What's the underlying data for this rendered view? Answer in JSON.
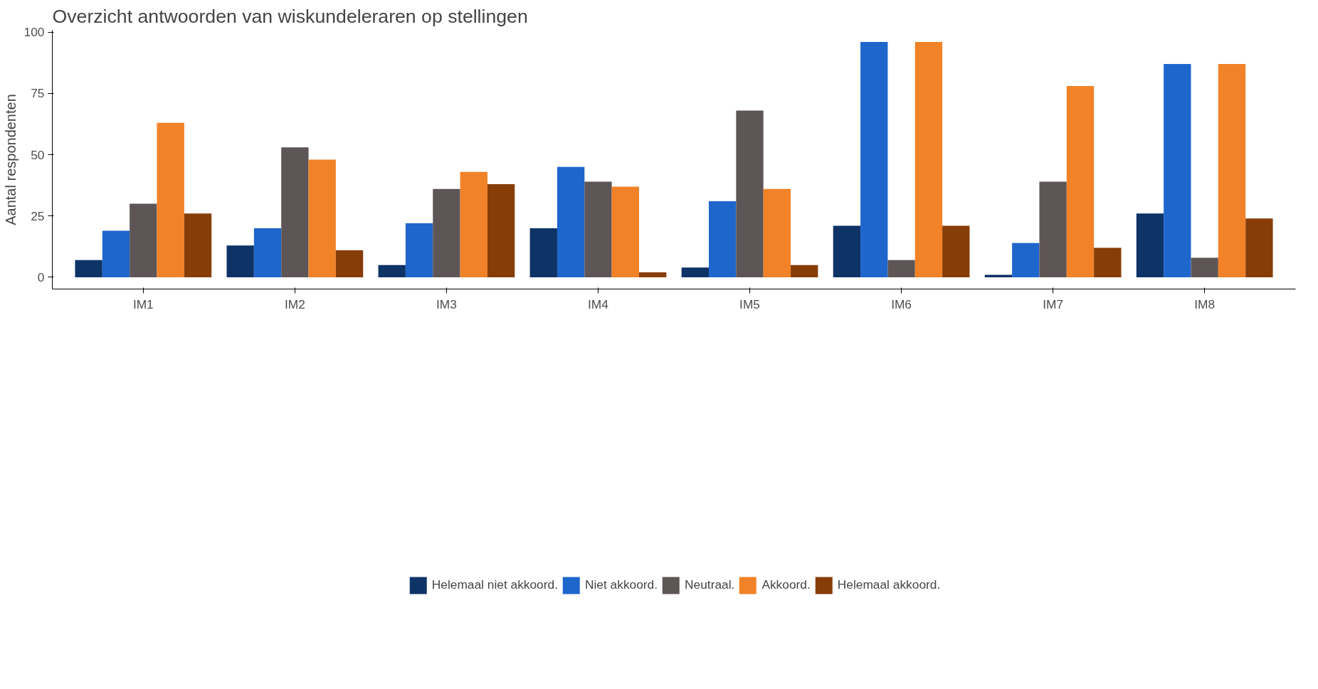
{
  "chart_data": {
    "type": "bar",
    "title": "Overzicht antwoorden van wiskundeleraren op stellingen",
    "ylabel": "Aantal respondenten",
    "categories": [
      "IM1",
      "IM2",
      "IM3",
      "IM4",
      "IM5",
      "IM6",
      "IM7",
      "IM8"
    ],
    "series": [
      {
        "name": "Helemaal niet akkoord.",
        "color": "#0e3366",
        "values": [
          7,
          13,
          5,
          20,
          4,
          21,
          1,
          26
        ]
      },
      {
        "name": "Niet akkoord.",
        "color": "#1f66cc",
        "values": [
          19,
          20,
          22,
          45,
          31,
          96,
          14,
          87
        ]
      },
      {
        "name": "Neutraal.",
        "color": "#5e5556",
        "values": [
          30,
          53,
          36,
          39,
          68,
          7,
          39,
          8
        ]
      },
      {
        "name": "Akkoord.",
        "color": "#f28228",
        "values": [
          63,
          48,
          43,
          37,
          36,
          96,
          78,
          87
        ]
      },
      {
        "name": "Helemaal akkoord.",
        "color": "#873d08",
        "values": [
          26,
          11,
          38,
          2,
          5,
          21,
          12,
          24
        ]
      }
    ],
    "ylim": [
      -4.8,
      100.8
    ],
    "yticks": [
      0,
      25,
      50,
      75,
      100
    ],
    "grid": false,
    "legend": "bottom"
  }
}
